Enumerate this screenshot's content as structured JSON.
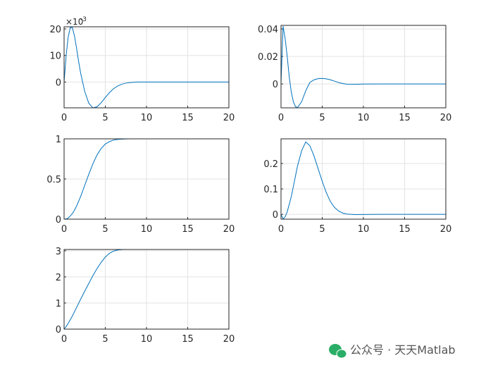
{
  "chart_data": [
    {
      "type": "line",
      "color": "#0072bd",
      "x": [
        0,
        0.25,
        0.5,
        0.75,
        1,
        1.25,
        1.5,
        1.75,
        2,
        2.5,
        3,
        3.5,
        4,
        4.5,
        5,
        5.5,
        6,
        6.5,
        7,
        7.5,
        8,
        9,
        10,
        12,
        15,
        20
      ],
      "values": [
        0,
        10,
        17,
        20.5,
        20.5,
        17.5,
        13,
        8,
        3.5,
        -3.5,
        -8,
        -9.7,
        -9.3,
        -7.8,
        -5.8,
        -4,
        -2.5,
        -1.5,
        -0.8,
        -0.4,
        -0.2,
        0,
        0,
        0,
        0,
        0
      ],
      "xlim": [
        0,
        20
      ],
      "xticks": [
        0,
        5,
        10,
        15,
        20
      ],
      "ylim": [
        -9.7,
        20.8
      ],
      "yticks": [
        0,
        10,
        20
      ],
      "y_exponent_base": "×10",
      "y_exponent": "-3",
      "grid": true
    },
    {
      "type": "line",
      "color": "#0072bd",
      "x": [
        0,
        0.25,
        0.5,
        0.75,
        1,
        1.25,
        1.5,
        1.75,
        2,
        2.5,
        3,
        3.5,
        4,
        4.5,
        5,
        5.5,
        6,
        6.5,
        7,
        7.5,
        8,
        9,
        10,
        12,
        15,
        20
      ],
      "values": [
        0,
        0.042,
        0.033,
        0.02,
        0.005,
        -0.006,
        -0.013,
        -0.0165,
        -0.0172,
        -0.013,
        -0.005,
        0.001,
        0.003,
        0.0038,
        0.004,
        0.0037,
        0.003,
        0.002,
        0.001,
        0.0003,
        -0.0002,
        -0.0003,
        -0.0001,
        0,
        0,
        0
      ],
      "xlim": [
        0,
        20
      ],
      "xticks": [
        0,
        5,
        10,
        15,
        20
      ],
      "ylim": [
        -0.0174,
        0.0426
      ],
      "yticks": [
        0,
        0.02,
        0.04
      ],
      "grid": true
    },
    {
      "type": "line",
      "color": "#0072bd",
      "x": [
        0,
        0.25,
        0.5,
        0.75,
        1,
        1.25,
        1.5,
        1.75,
        2,
        2.5,
        3,
        3.5,
        4,
        4.5,
        5,
        5.5,
        6,
        6.5,
        7,
        7.5,
        8,
        9,
        10,
        12,
        15,
        20
      ],
      "values": [
        0,
        0.003,
        0.015,
        0.04,
        0.07,
        0.11,
        0.16,
        0.22,
        0.28,
        0.42,
        0.56,
        0.69,
        0.8,
        0.88,
        0.935,
        0.965,
        0.985,
        0.993,
        0.997,
        0.999,
        1,
        1,
        1,
        1,
        1,
        1
      ],
      "xlim": [
        0,
        20
      ],
      "xticks": [
        0,
        5,
        10,
        15,
        20
      ],
      "ylim": [
        0,
        1
      ],
      "yticks": [
        0,
        0.5,
        1
      ],
      "grid": true
    },
    {
      "type": "line",
      "color": "#0072bd",
      "x": [
        0,
        0.25,
        0.5,
        0.75,
        1,
        1.25,
        1.5,
        1.75,
        2,
        2.5,
        3,
        3.5,
        4,
        4.5,
        5,
        5.5,
        6,
        6.5,
        7,
        7.5,
        8,
        9,
        10,
        12,
        15,
        20
      ],
      "values": [
        0,
        -0.018,
        -0.01,
        0.01,
        0.04,
        0.07,
        0.11,
        0.15,
        0.19,
        0.25,
        0.285,
        0.27,
        0.23,
        0.18,
        0.13,
        0.085,
        0.05,
        0.027,
        0.013,
        0.005,
        0.001,
        -0.001,
        -0.0005,
        0,
        0,
        0
      ],
      "xlim": [
        0,
        20
      ],
      "xticks": [
        0,
        5,
        10,
        15,
        20
      ],
      "ylim": [
        -0.019,
        0.297
      ],
      "yticks": [
        0,
        0.1,
        0.2
      ],
      "grid": true
    },
    {
      "type": "line",
      "color": "#0072bd",
      "x": [
        0,
        0.25,
        0.5,
        0.75,
        1,
        1.25,
        1.5,
        1.75,
        2,
        2.5,
        3,
        3.5,
        4,
        4.5,
        5,
        5.5,
        6,
        6.5,
        7,
        7.5,
        8,
        9,
        10,
        12,
        15,
        20
      ],
      "values": [
        0,
        0.1,
        0.22,
        0.36,
        0.5,
        0.66,
        0.82,
        0.98,
        1.14,
        1.45,
        1.75,
        2.05,
        2.32,
        2.56,
        2.76,
        2.9,
        2.99,
        3.03,
        3.045,
        3.05,
        3.05,
        3.05,
        3.05,
        3.05,
        3.05,
        3.05
      ],
      "xlim": [
        0,
        20
      ],
      "xticks": [
        0,
        5,
        10,
        15,
        20
      ],
      "ylim": [
        0,
        3.05
      ],
      "yticks": [
        0,
        1,
        2,
        3
      ],
      "grid": true
    }
  ],
  "watermark": "公众号 · 天天Matlab"
}
